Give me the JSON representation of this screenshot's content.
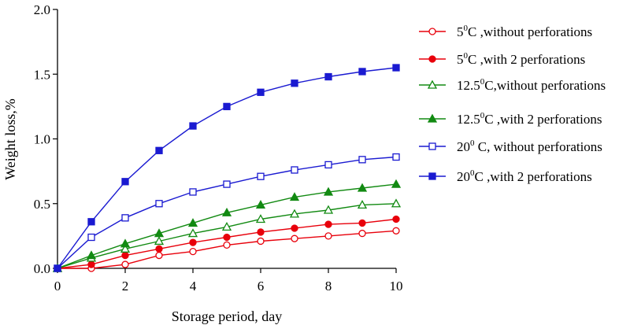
{
  "chart_data": {
    "type": "line",
    "xlabel": "Storage period, day",
    "ylabel": "Weight loss,%",
    "xlim": [
      0,
      10
    ],
    "ylim": [
      0,
      2.0
    ],
    "xticks": [
      0,
      2,
      4,
      6,
      8,
      10
    ],
    "yticks": [
      0.0,
      0.5,
      1.0,
      1.5,
      2.0
    ],
    "xtick_labels": [
      "0",
      "2",
      "4",
      "6",
      "8",
      "10"
    ],
    "ytick_labels": [
      "0.0",
      "0.5",
      "1.0",
      "1.5",
      "2.0"
    ],
    "grid": false,
    "legend_position": "right",
    "x": [
      0,
      1,
      2,
      3,
      4,
      5,
      6,
      7,
      8,
      9,
      10
    ],
    "series": [
      {
        "name": "5⁰C ,without perforations",
        "name_pre": "5",
        "name_sup": "0",
        "name_post": "C ,without perforations",
        "color": "#e8000b",
        "marker": "circle",
        "filled": false,
        "values": [
          0,
          0,
          0.03,
          0.1,
          0.13,
          0.18,
          0.21,
          0.23,
          0.25,
          0.27,
          0.29
        ]
      },
      {
        "name": "5⁰C ,with 2 perforations",
        "name_pre": "5",
        "name_sup": "0",
        "name_post": "C ,with  2 perforations",
        "color": "#e8000b",
        "marker": "circle",
        "filled": true,
        "values": [
          0,
          0.03,
          0.1,
          0.15,
          0.2,
          0.24,
          0.28,
          0.31,
          0.34,
          0.35,
          0.38
        ]
      },
      {
        "name": "12.5⁰C,without perforations",
        "name_pre": "12.5",
        "name_sup": "0",
        "name_post": "C,without perforations",
        "color": "#128a12",
        "marker": "triangle",
        "filled": false,
        "values": [
          0,
          0.08,
          0.15,
          0.21,
          0.27,
          0.32,
          0.38,
          0.42,
          0.45,
          0.49,
          0.5
        ]
      },
      {
        "name": "12.5⁰C ,with 2 perforations",
        "name_pre": "12.5",
        "name_sup": "0",
        "name_post": "C ,with 2 perforations",
        "color": "#128a12",
        "marker": "triangle",
        "filled": true,
        "values": [
          0,
          0.1,
          0.19,
          0.27,
          0.35,
          0.43,
          0.49,
          0.55,
          0.59,
          0.62,
          0.65
        ]
      },
      {
        "name": "20⁰ C, without perforations",
        "name_pre": "20",
        "name_sup": "0",
        "name_post": " C, without perforations",
        "color": "#1a1ad1",
        "marker": "square",
        "filled": false,
        "values": [
          0,
          0.24,
          0.39,
          0.5,
          0.59,
          0.65,
          0.71,
          0.76,
          0.8,
          0.84,
          0.86
        ]
      },
      {
        "name": "20⁰C ,with 2 perforations",
        "name_pre": "20",
        "name_sup": "0",
        "name_post": "C ,with 2 perforations",
        "color": "#1a1ad1",
        "marker": "square",
        "filled": true,
        "values": [
          0,
          0.36,
          0.67,
          0.91,
          1.1,
          1.25,
          1.36,
          1.43,
          1.48,
          1.52,
          1.55
        ]
      }
    ]
  }
}
